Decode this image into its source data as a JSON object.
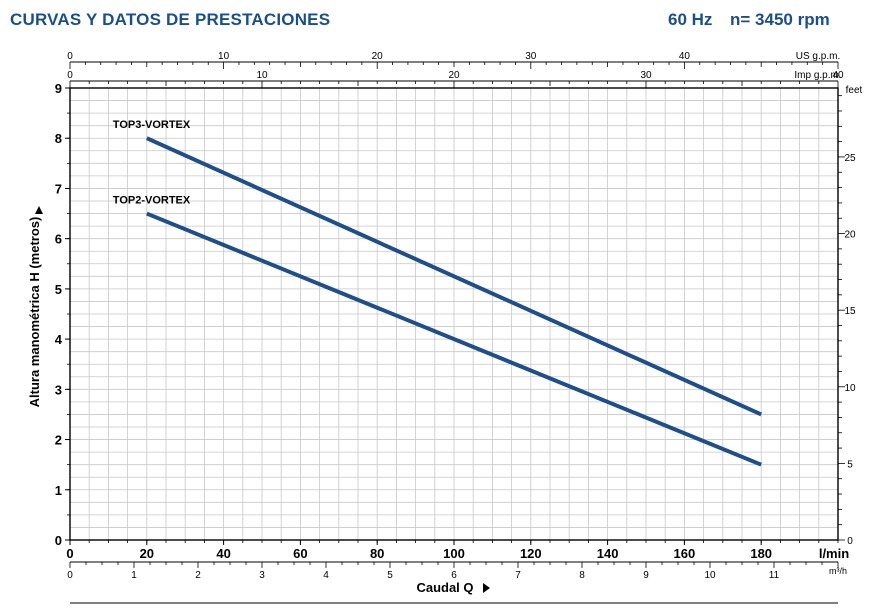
{
  "header": {
    "title": "CURVAS Y DATOS DE PRESTACIONES",
    "frequency": "60 Hz",
    "speed": "n= 3450 rpm"
  },
  "colors": {
    "title": "#1b4f8a",
    "curve": "#1f4e8c",
    "grid": "#c8c8c8",
    "axis": "#000000"
  },
  "chart_data": {
    "type": "line",
    "xlabel": "Caudal Q",
    "ylabel": "Altura manométrica H (metros)",
    "x_unit": "l/min",
    "xlim": [
      0,
      200
    ],
    "ylim": [
      0,
      9
    ],
    "x_ticks": [
      "0",
      "20",
      "40",
      "60",
      "80",
      "100",
      "120",
      "140",
      "160",
      "180"
    ],
    "y_ticks": [
      "0",
      "1",
      "2",
      "3",
      "4",
      "5",
      "6",
      "7",
      "8",
      "9"
    ],
    "grid": true,
    "series": [
      {
        "name": "TOP3-VORTEX",
        "x": [
          20,
          180
        ],
        "y": [
          8.0,
          2.5
        ]
      },
      {
        "name": "TOP2-VORTEX",
        "x": [
          20,
          180
        ],
        "y": [
          6.5,
          1.5
        ]
      }
    ],
    "secondary_axes": {
      "us_gpm": {
        "label": "US g.p.m.",
        "max": 50,
        "ticks": [
          "0",
          "10",
          "20",
          "30",
          "40"
        ]
      },
      "imp_gpm": {
        "label": "Imp g.p.m.",
        "max": 40,
        "ticks": [
          "0",
          "10",
          "20",
          "30",
          "40"
        ]
      },
      "m3h": {
        "label": "m³/h",
        "max": 12,
        "ticks": [
          "0",
          "1",
          "2",
          "3",
          "4",
          "5",
          "6",
          "7",
          "8",
          "9",
          "10",
          "11"
        ]
      },
      "feet": {
        "label": "feet",
        "max": 29.5,
        "ticks": [
          "0",
          "5",
          "10",
          "15",
          "20",
          "25"
        ]
      }
    }
  }
}
